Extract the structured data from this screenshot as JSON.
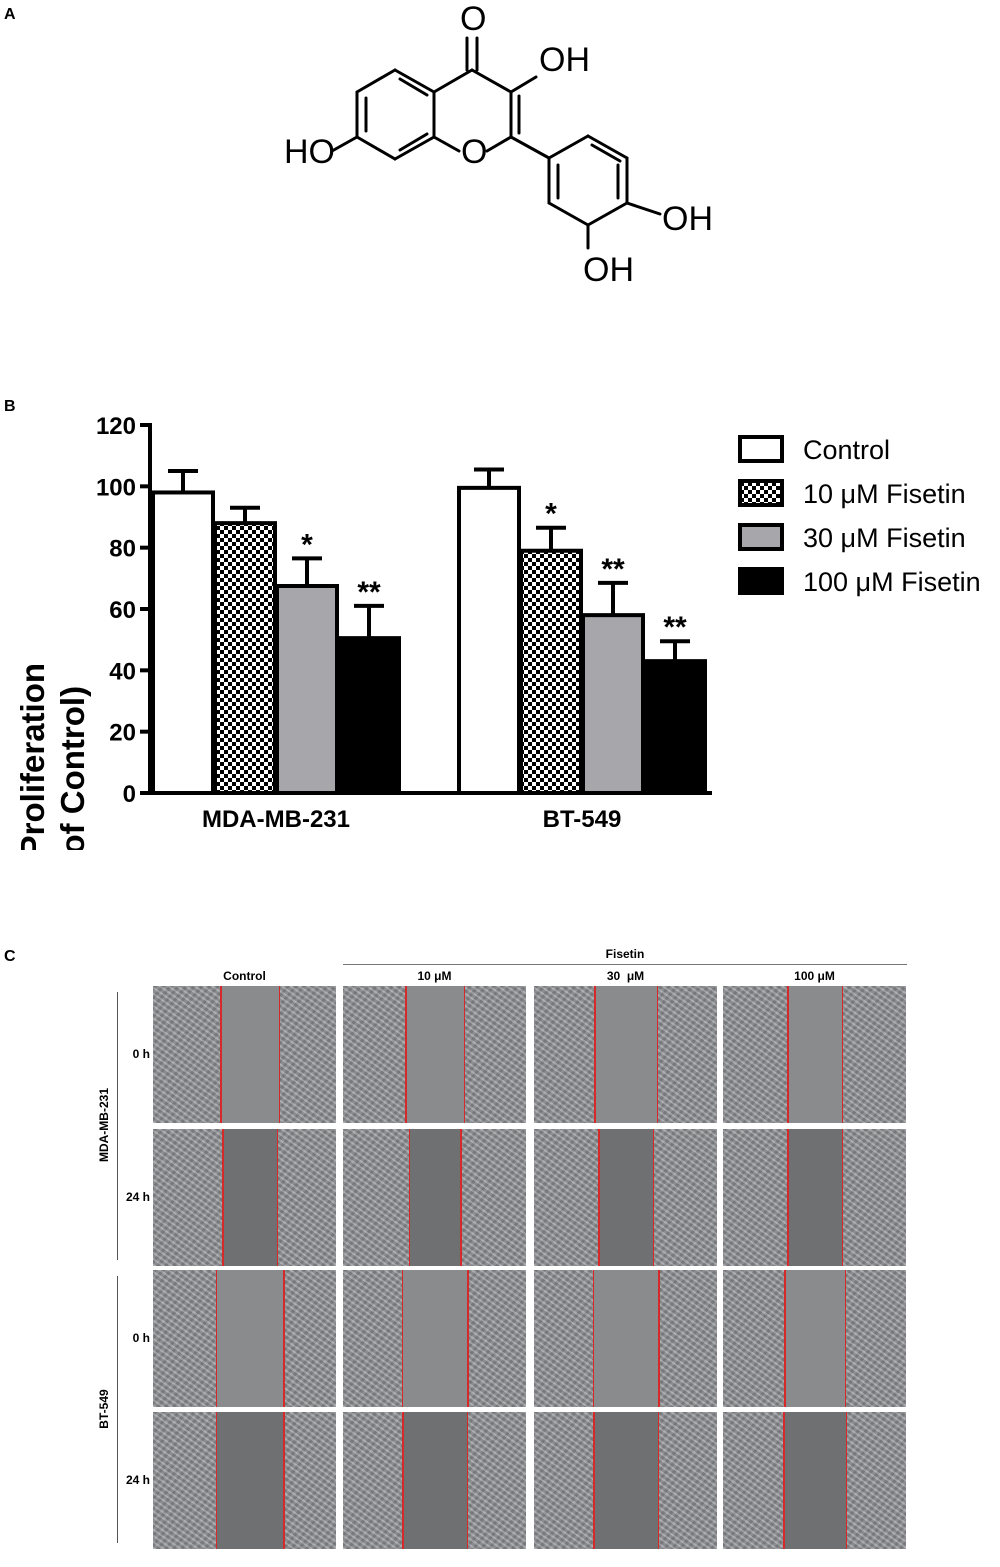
{
  "panels": {
    "a": "A",
    "b": "B",
    "c": "C"
  },
  "molecule": {
    "carbonyl_o": "O",
    "ring_o": "O",
    "oh3": "OH",
    "oh7": "HO",
    "oh4p": "OH",
    "oh3p": "OH"
  },
  "colors": {
    "control": "#ffffff",
    "fisetin_10": "checkered",
    "fisetin_30": "#a7a7ab",
    "fisetin_100": "#000000",
    "scratch_line": "#d62a2a",
    "micrograph_bg": "#8e9094"
  },
  "chart_data": {
    "type": "bar",
    "ylabel_line1": "Cell Proliferation",
    "ylabel_line2": "(% of Control)",
    "ylim": [
      0,
      120
    ],
    "yticks": [
      "0",
      "20",
      "40",
      "60",
      "80",
      "100",
      "120"
    ],
    "categories": [
      "MDA-MB-231",
      "BT-549"
    ],
    "grid": false,
    "legend_position": "right",
    "series": [
      {
        "name": "Control",
        "values": [
          98,
          99.5
        ],
        "errors": [
          7,
          6
        ],
        "sig": [
          "",
          ""
        ]
      },
      {
        "name": "10 μM Fisetin",
        "values": [
          88,
          79
        ],
        "errors": [
          5,
          7.5
        ],
        "sig": [
          "",
          "*"
        ]
      },
      {
        "name": "30 μM Fisetin",
        "values": [
          67.5,
          58
        ],
        "errors": [
          9,
          10.5
        ],
        "sig": [
          "*",
          "**"
        ]
      },
      {
        "name": "100 μM Fisetin",
        "values": [
          50.5,
          43
        ],
        "errors": [
          10.5,
          6.5
        ],
        "sig": [
          "**",
          "**"
        ]
      }
    ]
  },
  "scratch_assay": {
    "group_label": "Fisetin",
    "conditions": [
      "Control",
      "10 μM",
      "30  μM",
      "100 μM"
    ],
    "cell_lines": [
      "MDA-MB-231",
      "BT-549"
    ],
    "times": [
      "0 h",
      "24 h"
    ],
    "gap_fraction": [
      [
        0.32,
        0.32,
        0.34,
        0.3
      ],
      [
        0.3,
        0.28,
        0.3,
        0.3
      ],
      [
        0.37,
        0.36,
        0.36,
        0.33
      ],
      [
        0.37,
        0.35,
        0.35,
        0.34
      ]
    ]
  }
}
